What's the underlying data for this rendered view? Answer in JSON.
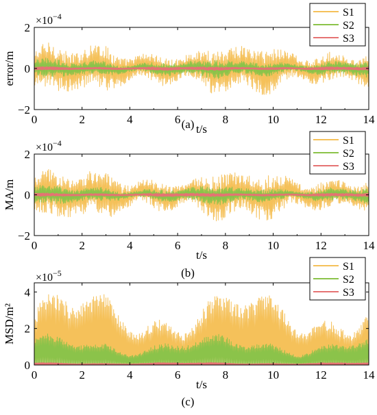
{
  "figure": {
    "panels": [
      {
        "caption": "(a)",
        "exponent_label": "×10",
        "exponent_power": "−4"
      },
      {
        "caption": "(b)",
        "exponent_label": "×10",
        "exponent_power": "−4"
      },
      {
        "caption": "(c)",
        "exponent_label": "×10",
        "exponent_power": "−5"
      }
    ]
  },
  "chart_data": [
    {
      "type": "line",
      "ylabel": "error/m",
      "xlabel": "t/s",
      "xlim": [
        0,
        14
      ],
      "ylim": [
        -2,
        2
      ],
      "yscale_note": "×10^-4",
      "xticks": [
        0,
        2,
        4,
        6,
        8,
        10,
        12,
        14
      ],
      "yticks": [
        -2,
        0,
        2
      ],
      "legend_position": "top-right",
      "series": [
        {
          "name": "S1",
          "color": "#F5C15A",
          "amplitude": 1.2,
          "offset": 0
        },
        {
          "name": "S2",
          "color": "#8BC34A",
          "amplitude": 0.45,
          "offset": 0
        },
        {
          "name": "S3",
          "color": "#E57373",
          "amplitude": 0.08,
          "offset": 0
        }
      ]
    },
    {
      "type": "line",
      "ylabel": "MA/m",
      "xlabel": "t/s",
      "xlim": [
        0,
        14
      ],
      "ylim": [
        -2,
        2
      ],
      "yscale_note": "×10^-4",
      "xticks": [
        0,
        2,
        4,
        6,
        8,
        10,
        12,
        14
      ],
      "yticks": [
        -2,
        0,
        2
      ],
      "legend_position": "top-right",
      "series": [
        {
          "name": "S1",
          "color": "#F5C15A",
          "amplitude": 1.2,
          "offset": 0
        },
        {
          "name": "S2",
          "color": "#8BC34A",
          "amplitude": 0.45,
          "offset": 0
        },
        {
          "name": "S3",
          "color": "#E57373",
          "amplitude": 0.08,
          "offset": 0
        }
      ]
    },
    {
      "type": "line",
      "ylabel": "MSD/m²",
      "xlabel": "t/s",
      "xlim": [
        0,
        14
      ],
      "ylim": [
        0,
        4.5
      ],
      "yscale_note": "×10^-5",
      "xticks": [
        0,
        2,
        4,
        6,
        8,
        10,
        12,
        14
      ],
      "yticks": [
        0,
        2,
        4
      ],
      "legend_position": "top-right",
      "series": [
        {
          "name": "S1",
          "color": "#F5C15A",
          "amplitude": 3.8,
          "offset": 0
        },
        {
          "name": "S2",
          "color": "#8BC34A",
          "amplitude": 1.5,
          "offset": 0
        },
        {
          "name": "S3",
          "color": "#E57373",
          "amplitude": 0.12,
          "offset": 0
        }
      ]
    }
  ]
}
